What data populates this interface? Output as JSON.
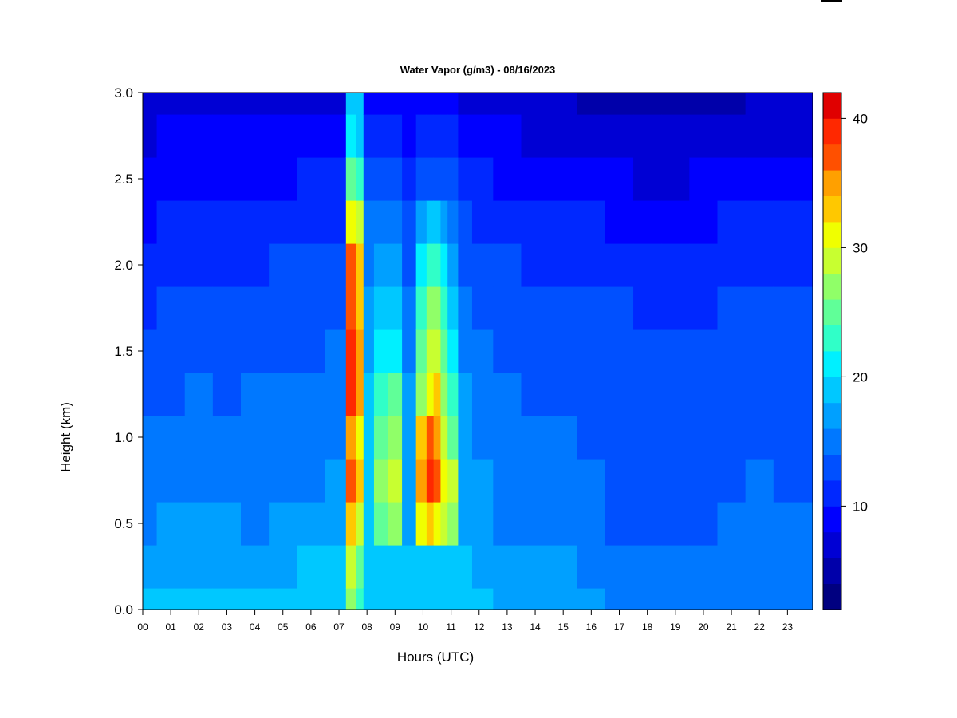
{
  "chart_data": {
    "type": "heatmap",
    "title": "Water Vapor (g/m3) - 08/16/2023",
    "xlabel": "Hours (UTC)",
    "ylabel": "Height (km)",
    "x_ticks": [
      "00",
      "01",
      "02",
      "03",
      "04",
      "05",
      "06",
      "07",
      "08",
      "09",
      "10",
      "11",
      "12",
      "13",
      "14",
      "15",
      "16",
      "17",
      "18",
      "19",
      "20",
      "21",
      "22",
      "23"
    ],
    "xlim": [
      0,
      23.9
    ],
    "y_ticks": [
      "0.0",
      "0.5",
      "1.0",
      "1.5",
      "2.0",
      "2.5",
      "3.0"
    ],
    "ylim": [
      0,
      3.0
    ],
    "colorbar": {
      "ticks": [
        "10",
        "20",
        "30",
        "40"
      ],
      "tick_values": [
        10,
        20,
        30,
        40
      ],
      "range": [
        2,
        42
      ],
      "levels": [
        2,
        4,
        6,
        8,
        10,
        12,
        14,
        16,
        18,
        20,
        22,
        24,
        26,
        28,
        30,
        32,
        34,
        36,
        38,
        40,
        42
      ],
      "colors": [
        "#000080",
        "#0000aa",
        "#0000d4",
        "#0000ff",
        "#0028ff",
        "#0050ff",
        "#0078ff",
        "#00a0ff",
        "#00c8ff",
        "#00f0ff",
        "#30ffc8",
        "#60ff98",
        "#90ff68",
        "#c8ff30",
        "#f0ff00",
        "#ffc800",
        "#ffa000",
        "#ff5000",
        "#ff2800",
        "#e00000",
        "#b00000",
        "#800000"
      ]
    },
    "times_h": [
      0,
      1,
      2,
      3,
      4,
      5,
      6,
      7,
      7.5,
      7.75,
      8,
      8.5,
      9,
      9.5,
      10,
      10.25,
      10.5,
      10.75,
      11,
      11.5,
      12,
      13,
      14,
      15,
      16,
      17,
      18,
      19,
      20,
      21,
      22,
      23,
      23.9
    ],
    "heights_km": [
      0,
      0.25,
      0.5,
      0.75,
      1.0,
      1.25,
      1.5,
      1.75,
      2.0,
      2.25,
      2.5,
      2.75,
      3.0
    ],
    "values": [
      [
        18,
        17,
        15,
        14,
        14,
        13,
        12,
        11,
        10,
        9,
        8,
        7,
        6
      ],
      [
        18,
        17,
        16,
        15,
        14,
        13,
        13,
        12,
        11,
        10,
        9,
        8,
        7
      ],
      [
        18,
        17,
        16,
        15,
        14,
        14,
        13,
        12,
        11,
        10,
        9,
        8,
        7
      ],
      [
        18,
        17,
        16,
        15,
        14,
        13,
        13,
        12,
        11,
        10,
        9,
        8,
        7
      ],
      [
        18,
        17,
        15,
        15,
        14,
        14,
        13,
        12,
        11,
        10,
        9,
        8,
        7
      ],
      [
        18,
        17,
        16,
        15,
        15,
        14,
        13,
        12,
        12,
        11,
        9,
        8,
        7
      ],
      [
        18,
        18,
        16,
        15,
        15,
        14,
        13,
        13,
        12,
        11,
        10,
        8,
        7
      ],
      [
        18,
        18,
        16,
        16,
        15,
        14,
        14,
        13,
        12,
        11,
        10,
        9,
        7
      ],
      [
        26,
        28,
        32,
        36,
        34,
        38,
        38,
        37,
        36,
        30,
        24,
        20,
        18
      ],
      [
        22,
        24,
        28,
        32,
        30,
        34,
        34,
        33,
        32,
        28,
        22,
        19,
        18
      ],
      [
        18,
        18,
        18,
        18,
        18,
        18,
        17,
        16,
        15,
        14,
        12,
        10,
        8
      ],
      [
        18,
        18,
        24,
        26,
        24,
        22,
        20,
        18,
        17,
        15,
        12,
        10,
        8
      ],
      [
        18,
        18,
        26,
        28,
        26,
        24,
        20,
        18,
        17,
        15,
        12,
        10,
        8
      ],
      [
        18,
        18,
        17,
        17,
        16,
        16,
        15,
        14,
        13,
        12,
        10,
        9,
        8
      ],
      [
        18,
        18,
        30,
        34,
        32,
        26,
        24,
        22,
        20,
        16,
        12,
        10,
        8
      ],
      [
        18,
        18,
        32,
        38,
        36,
        30,
        28,
        26,
        22,
        18,
        13,
        10,
        8
      ],
      [
        18,
        18,
        30,
        36,
        34,
        32,
        28,
        26,
        22,
        18,
        13,
        10,
        8
      ],
      [
        18,
        18,
        28,
        30,
        28,
        26,
        24,
        22,
        20,
        16,
        12,
        10,
        8
      ],
      [
        18,
        18,
        26,
        28,
        24,
        22,
        20,
        18,
        17,
        15,
        12,
        10,
        8
      ],
      [
        18,
        18,
        17,
        17,
        16,
        16,
        15,
        14,
        13,
        12,
        10,
        9,
        7
      ],
      [
        18,
        17,
        16,
        16,
        15,
        15,
        14,
        13,
        12,
        11,
        10,
        8,
        7
      ],
      [
        17,
        16,
        15,
        15,
        14,
        14,
        13,
        13,
        12,
        11,
        9,
        8,
        6
      ],
      [
        16,
        16,
        15,
        14,
        14,
        13,
        13,
        12,
        11,
        10,
        9,
        7,
        6
      ],
      [
        16,
        16,
        15,
        14,
        14,
        13,
        13,
        12,
        11,
        10,
        8,
        7,
        6
      ],
      [
        16,
        15,
        14,
        14,
        13,
        13,
        12,
        12,
        11,
        10,
        8,
        7,
        5
      ],
      [
        15,
        15,
        13,
        13,
        13,
        13,
        12,
        12,
        10,
        9,
        8,
        6,
        5
      ],
      [
        15,
        14,
        13,
        12,
        12,
        12,
        12,
        11,
        10,
        9,
        7,
        6,
        4
      ],
      [
        15,
        14,
        13,
        12,
        13,
        13,
        12,
        11,
        10,
        9,
        7,
        6,
        4
      ],
      [
        15,
        14,
        13,
        13,
        13,
        13,
        12,
        11,
        10,
        9,
        8,
        6,
        5
      ],
      [
        15,
        15,
        14,
        13,
        13,
        13,
        12,
        12,
        11,
        10,
        8,
        7,
        5
      ],
      [
        15,
        15,
        14,
        14,
        13,
        13,
        12,
        12,
        11,
        10,
        9,
        7,
        6
      ],
      [
        15,
        15,
        14,
        13,
        13,
        13,
        12,
        12,
        11,
        10,
        9,
        7,
        6
      ],
      [
        15,
        15,
        14,
        13,
        13,
        13,
        12,
        12,
        11,
        10,
        9,
        7,
        6
      ]
    ]
  }
}
